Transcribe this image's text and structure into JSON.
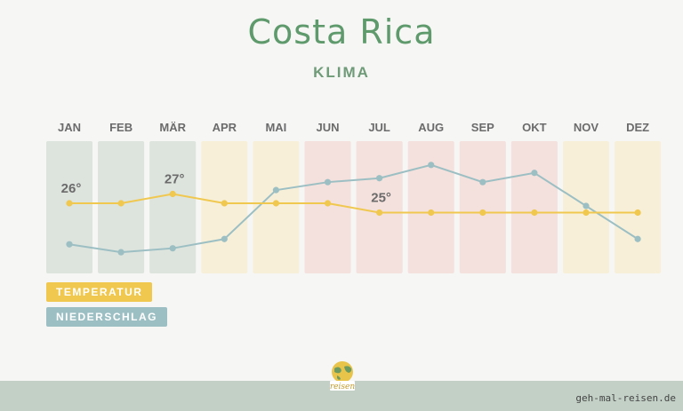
{
  "title": "Costa Rica",
  "subtitle": "KLIMA",
  "website": "geh-mal-reisen.de",
  "logo_text": "reisen",
  "legend": {
    "temperature": "TEMPERATUR",
    "precipitation": "NIEDERSCHLAG"
  },
  "colors": {
    "title": "#5e9a6b",
    "temperature": "#f0c84f",
    "precipitation": "#9cbfc4",
    "dry_green": "#dde3dd",
    "dry_yellow": "#f7efd8",
    "wet_red": "#f4e0dc",
    "footer": "#c2d0c6"
  },
  "chart_data": {
    "type": "line",
    "categories": [
      "JAN",
      "FEB",
      "MÄR",
      "APR",
      "MAI",
      "JUN",
      "JUL",
      "AUG",
      "SEP",
      "OKT",
      "NOV",
      "DEZ"
    ],
    "month_shading": [
      "green",
      "green",
      "green",
      "yellow",
      "yellow",
      "red",
      "red",
      "red",
      "red",
      "red",
      "yellow",
      "yellow"
    ],
    "series": [
      {
        "name": "TEMPERATUR",
        "unit": "°C",
        "values": [
          26,
          26,
          27,
          26,
          26,
          26,
          25,
          25,
          25,
          25,
          25,
          25
        ]
      },
      {
        "name": "NIEDERSCHLAG",
        "values": [
          0.22,
          0.16,
          0.19,
          0.26,
          0.63,
          0.69,
          0.72,
          0.82,
          0.69,
          0.76,
          0.51,
          0.26
        ]
      }
    ],
    "annotations": [
      {
        "month": "JAN",
        "text": "26°"
      },
      {
        "month": "MÄR",
        "text": "27°"
      },
      {
        "month": "JUL",
        "text": "25°"
      }
    ],
    "temperature_range": [
      22,
      30
    ],
    "grid": false,
    "legend_position": "bottom-left"
  }
}
